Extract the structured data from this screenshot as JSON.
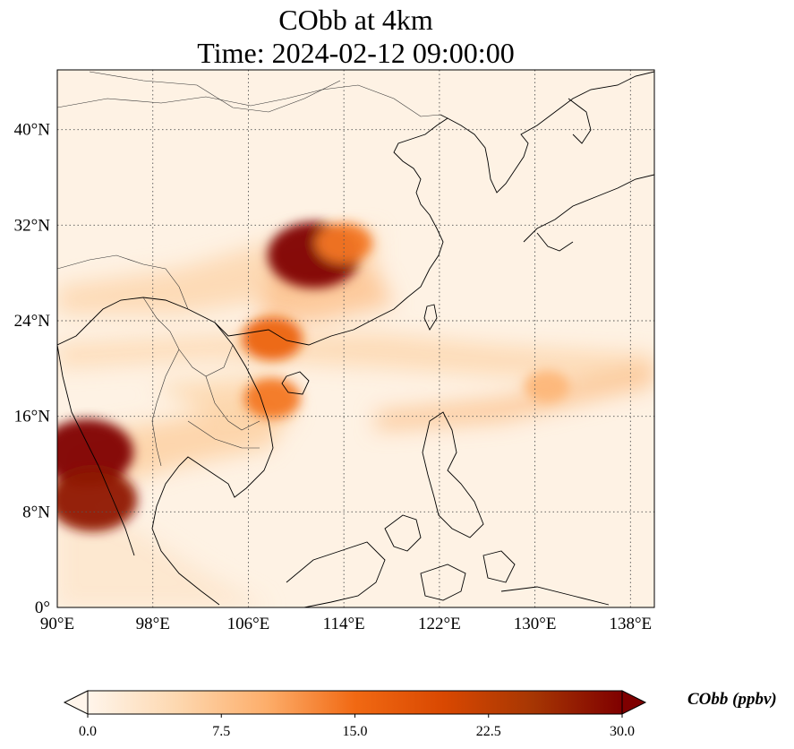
{
  "title": {
    "line1": "CObb at 4km",
    "line2": "Time: 2024-02-12 09:00:00"
  },
  "map": {
    "extent": {
      "lon_min": 90,
      "lon_max": 140,
      "lat_min": 0,
      "lat_max": 45
    },
    "gridlines": "dotted",
    "lon_ticks": [
      {
        "value": 90,
        "label": "90°E"
      },
      {
        "value": 98,
        "label": "98°E"
      },
      {
        "value": 106,
        "label": "106°E"
      },
      {
        "value": 114,
        "label": "114°E"
      },
      {
        "value": 122,
        "label": "122°E"
      },
      {
        "value": 130,
        "label": "130°E"
      },
      {
        "value": 138,
        "label": "138°E"
      }
    ],
    "lat_ticks": [
      {
        "value": 0,
        "label": "0°"
      },
      {
        "value": 8,
        "label": "8°N"
      },
      {
        "value": 16,
        "label": "16°N"
      },
      {
        "value": 24,
        "label": "24°N"
      },
      {
        "value": 32,
        "label": "32°N"
      },
      {
        "value": 40,
        "label": "40°N"
      }
    ],
    "concentration_features": [
      {
        "lon": 111.5,
        "lat": 29.5,
        "value": 30
      },
      {
        "lon": 114.0,
        "lat": 30.5,
        "value": 14
      },
      {
        "lon": 108.0,
        "lat": 22.5,
        "value": 16
      },
      {
        "lon": 92.5,
        "lat": 13.0,
        "value": 30
      },
      {
        "lon": 93.0,
        "lat": 9.0,
        "value": 28
      },
      {
        "lon": 108.0,
        "lat": 17.5,
        "value": 14
      },
      {
        "lon": 131.0,
        "lat": 18.5,
        "value": 9
      }
    ]
  },
  "colorbar": {
    "label": "CObb (ppbv)",
    "min": 0,
    "max": 30,
    "extend": "both",
    "colormap": [
      "#fff5eb",
      "#fdd8b0",
      "#fdae6b",
      "#f16913",
      "#d94801",
      "#a63603",
      "#7f0000"
    ],
    "ticks": [
      {
        "value": 0,
        "label": "0.0"
      },
      {
        "value": 7.5,
        "label": "7.5"
      },
      {
        "value": 15,
        "label": "15.0"
      },
      {
        "value": 22.5,
        "label": "22.5"
      },
      {
        "value": 30,
        "label": "30.0"
      }
    ]
  }
}
